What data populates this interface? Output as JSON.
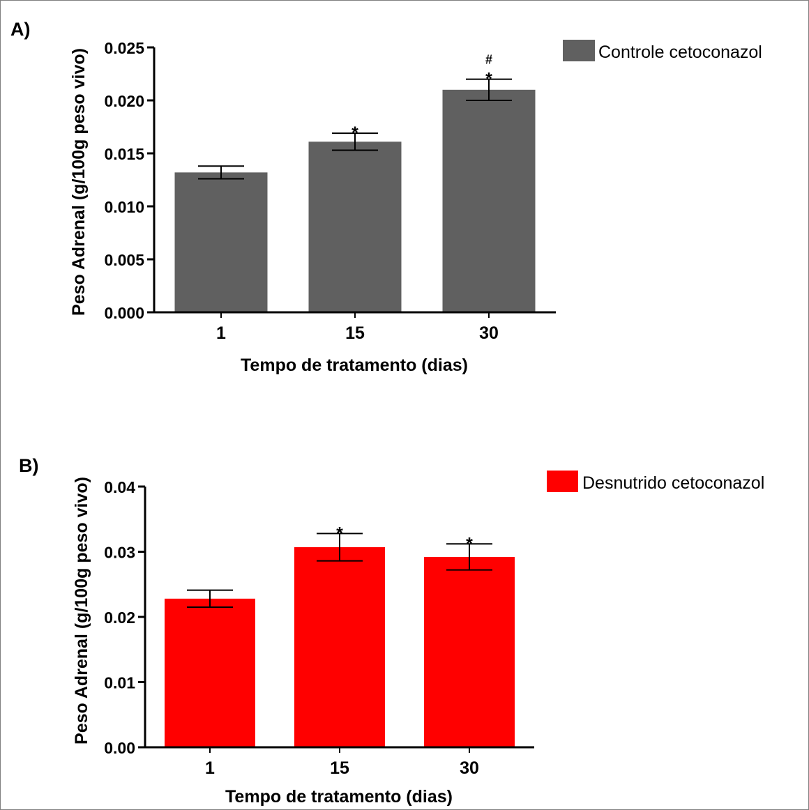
{
  "chart_data": [
    {
      "type": "bar",
      "panel_label": "A)",
      "categories": [
        "1",
        "15",
        "30"
      ],
      "values": [
        0.0132,
        0.0161,
        0.021
      ],
      "errors": [
        0.0006,
        0.0008,
        0.001
      ],
      "annotations": [
        "",
        "*",
        "#\n*"
      ],
      "series": [
        {
          "name": "Controle cetoconazol",
          "color": "#606060",
          "values": [
            0.0132,
            0.0161,
            0.021
          ]
        }
      ],
      "xlabel": "Tempo de tratamento (dias)",
      "ylabel": "Peso Adrenal (g/100g peso vivo)",
      "ylim": [
        0,
        0.025
      ],
      "yticks": [
        "0.000",
        "0.005",
        "0.010",
        "0.015",
        "0.020",
        "0.025"
      ],
      "legend_position": "top-right",
      "grid": false
    },
    {
      "type": "bar",
      "panel_label": "B)",
      "categories": [
        "1",
        "15",
        "30"
      ],
      "values": [
        0.0228,
        0.0307,
        0.0292
      ],
      "errors": [
        0.0013,
        0.0021,
        0.002
      ],
      "annotations": [
        "",
        "*",
        "*"
      ],
      "series": [
        {
          "name": "Desnutrido cetoconazol",
          "color": "#ff0000",
          "values": [
            0.0228,
            0.0307,
            0.0292
          ]
        }
      ],
      "xlabel": "Tempo de tratamento (dias)",
      "ylabel": "Peso Adrenal (g/100g peso vivo)",
      "ylim": [
        0,
        0.04
      ],
      "yticks": [
        "0.00",
        "0.01",
        "0.02",
        "0.03",
        "0.04"
      ],
      "legend_position": "top-right",
      "grid": false
    }
  ]
}
